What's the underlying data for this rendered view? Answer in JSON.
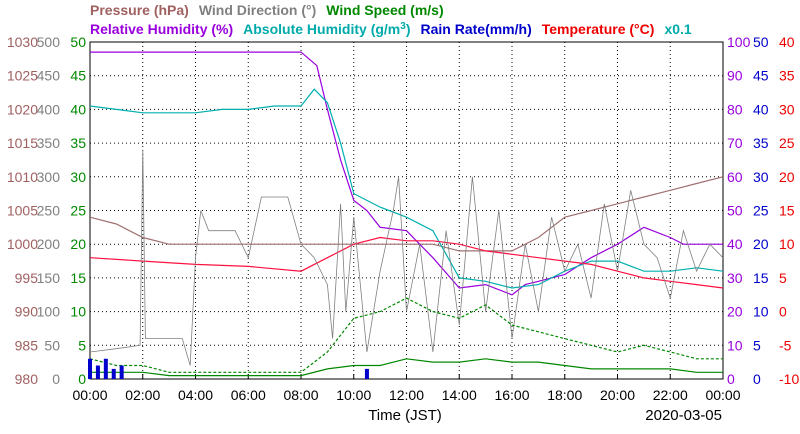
{
  "chart_data": {
    "type": "line",
    "date": "2020-03-05",
    "xlabel": "Time (JST)",
    "x_ticks": [
      "00:00",
      "02:00",
      "04:00",
      "06:00",
      "08:00",
      "10:00",
      "12:00",
      "14:00",
      "16:00",
      "18:00",
      "20:00",
      "22:00",
      "00:00"
    ],
    "legend": {
      "row1": [
        {
          "label": "Pressure (hPa)",
          "color": "#a06060"
        },
        {
          "label": "Wind Direction (°)",
          "color": "#808080"
        },
        {
          "label": "Wind Speed (m/s)",
          "color": "#008800"
        }
      ],
      "row2": [
        {
          "label": "Relative Humidity (%)",
          "color": "#9900dd"
        },
        {
          "label": "Absolute Humidity (g/m",
          "sup": "3",
          "close": ")",
          "color": "#00aaaa"
        },
        {
          "label": "Rain Rate(mm/h)",
          "color": "#0000cc"
        },
        {
          "label": "Temperature (°C)",
          "color": "#ee0000"
        },
        {
          "label": "x0.1",
          "color": "#00aaaa"
        }
      ]
    },
    "axes": {
      "pressure": {
        "color": "#a06060",
        "min": 980,
        "max": 1030,
        "ticks": [
          "1030",
          "1025",
          "1020",
          "1015",
          "1010",
          "1005",
          "1000",
          "995",
          "990",
          "985",
          "980"
        ]
      },
      "wind_direction": {
        "color": "#808080",
        "min": 0,
        "max": 500,
        "ticks": [
          "500",
          "450",
          "400",
          "350",
          "300",
          "250",
          "200",
          "150",
          "100",
          "50",
          "0"
        ]
      },
      "wind_speed": {
        "color": "#008800",
        "min": 0,
        "max": 50,
        "ticks": [
          "50",
          "45",
          "40",
          "35",
          "30",
          "25",
          "20",
          "15",
          "10",
          "5",
          "0"
        ]
      },
      "relative_humidity": {
        "color": "#9900dd",
        "min": 0,
        "max": 100,
        "ticks": [
          "100",
          "90",
          "80",
          "70",
          "60",
          "50",
          "40",
          "30",
          "20",
          "10",
          "0"
        ]
      },
      "rain_rate": {
        "color": "#0000cc",
        "min": 0,
        "max": 50,
        "ticks": [
          "50",
          "45",
          "40",
          "35",
          "30",
          "25",
          "20",
          "15",
          "10",
          "5",
          "0"
        ]
      },
      "temperature": {
        "color": "#ee0000",
        "min": -10,
        "max": 40,
        "ticks": [
          "40",
          "35",
          "30",
          "25",
          "20",
          "15",
          "10",
          "5",
          "0",
          "-5",
          "-10"
        ]
      }
    },
    "series": [
      {
        "key": "pressure",
        "color": "#a07070",
        "x": [
          0,
          1,
          2,
          3,
          4,
          5,
          6,
          7,
          8,
          9,
          10,
          11,
          12,
          13,
          14,
          15,
          16,
          17,
          18,
          19,
          20,
          21,
          22,
          23,
          24
        ],
        "y": [
          1004,
          1003,
          1001,
          1000,
          1000,
          1000,
          1000,
          1000,
          1000,
          1000,
          1000,
          1000,
          1000,
          1000,
          999,
          999,
          999,
          1001,
          1004,
          1005,
          1006,
          1007,
          1008,
          1009,
          1010
        ]
      },
      {
        "key": "relative_humidity",
        "color": "#9900dd",
        "x": [
          0,
          0.5,
          1,
          2,
          3,
          4,
          5,
          6,
          7,
          8,
          8.6,
          9,
          9.5,
          10,
          10.5,
          11,
          12,
          13,
          14,
          15,
          16,
          16.5,
          17,
          17.5,
          18,
          19,
          20,
          21,
          22,
          22.5,
          23,
          24
        ],
        "y": [
          97,
          97,
          97,
          97,
          97,
          97,
          97,
          97,
          97,
          97,
          93,
          80,
          65,
          53,
          50,
          45,
          44,
          36,
          27,
          28,
          25,
          28,
          29,
          30,
          31,
          36,
          40,
          45,
          42,
          40,
          40,
          40
        ]
      },
      {
        "key": "absolute_humidity",
        "color": "#00b0b0",
        "x": [
          0,
          1,
          2,
          3,
          4,
          5,
          6,
          7,
          8,
          8.5,
          9,
          9.5,
          10,
          10.5,
          11,
          12,
          13,
          14,
          15,
          16,
          17,
          18,
          19,
          20,
          21,
          22,
          23,
          24
        ],
        "y": [
          81,
          80,
          79,
          79,
          79,
          80,
          80,
          81,
          81,
          86,
          82,
          70,
          55,
          53,
          51,
          48,
          44,
          30,
          29,
          27,
          28,
          32,
          35,
          35,
          32,
          32,
          33,
          32
        ]
      },
      {
        "key": "temperature",
        "color": "#ff1040",
        "x": [
          0,
          2,
          4,
          6,
          8,
          9,
          10,
          11,
          12,
          13,
          14,
          15,
          16,
          17,
          18,
          19,
          20,
          21,
          22,
          23,
          24
        ],
        "y": [
          8,
          7.5,
          7,
          6.7,
          6,
          8,
          10,
          11,
          10.5,
          10.5,
          10,
          9,
          8.5,
          8,
          7.5,
          7,
          6,
          5,
          4.5,
          4,
          3.5
        ]
      },
      {
        "key": "wind_direction",
        "color": "#808080",
        "x": [
          0,
          1,
          1.9,
          2,
          2.1,
          2.5,
          3,
          3.5,
          3.8,
          4,
          4.2,
          4.5,
          5,
          5.5,
          6,
          6.5,
          7,
          7.5,
          8,
          8.5,
          9,
          9.2,
          9.5,
          9.7,
          10,
          10.5,
          11,
          11.5,
          11.7,
          12,
          12.5,
          13,
          13.5,
          14,
          14.5,
          15,
          15.5,
          16,
          16.5,
          17,
          17.5,
          18,
          18.5,
          19,
          19.5,
          20,
          20.5,
          21,
          21.5,
          22,
          22.5,
          23,
          23.5,
          24
        ],
        "y": [
          40,
          45,
          50,
          340,
          60,
          60,
          60,
          60,
          20,
          180,
          250,
          220,
          220,
          220,
          180,
          270,
          270,
          270,
          200,
          180,
          140,
          60,
          260,
          100,
          240,
          40,
          160,
          250,
          300,
          100,
          200,
          40,
          220,
          80,
          300,
          100,
          250,
          60,
          200,
          100,
          240,
          160,
          200,
          120,
          260,
          160,
          280,
          200,
          180,
          120,
          220,
          160,
          200,
          180
        ]
      },
      {
        "key": "wind_speed_avg",
        "color": "#008800",
        "dash": false,
        "x": [
          0,
          1,
          2,
          3,
          4,
          5,
          6,
          7,
          8,
          9,
          10,
          11,
          12,
          13,
          14,
          15,
          16,
          17,
          18,
          19,
          20,
          21,
          22,
          23,
          24
        ],
        "y": [
          1,
          1,
          1,
          0.5,
          0.5,
          0.5,
          0.5,
          0.5,
          0.5,
          1.5,
          2,
          2,
          3,
          2.5,
          2.5,
          3,
          2.5,
          2.5,
          2,
          1.5,
          1.5,
          1.5,
          1.5,
          1,
          1
        ]
      },
      {
        "key": "wind_speed_gust",
        "color": "#008800",
        "dash": true,
        "x": [
          0,
          1,
          2,
          3,
          4,
          5,
          6,
          7,
          8,
          9,
          10,
          11,
          12,
          13,
          14,
          15,
          16,
          17,
          18,
          19,
          20,
          21,
          22,
          23,
          24
        ],
        "y": [
          3,
          2,
          2,
          1,
          1,
          1,
          1,
          1,
          1,
          4,
          9,
          10,
          12,
          10,
          9,
          11,
          8,
          7,
          6,
          5,
          4,
          5,
          4,
          3,
          3
        ]
      },
      {
        "key": "rain_rate",
        "color": "#0000cc",
        "x": [
          0,
          0.3,
          0.6,
          0.9,
          1.2,
          10.5
        ],
        "y": [
          3,
          2,
          3,
          1.5,
          2,
          1.5
        ]
      }
    ]
  }
}
